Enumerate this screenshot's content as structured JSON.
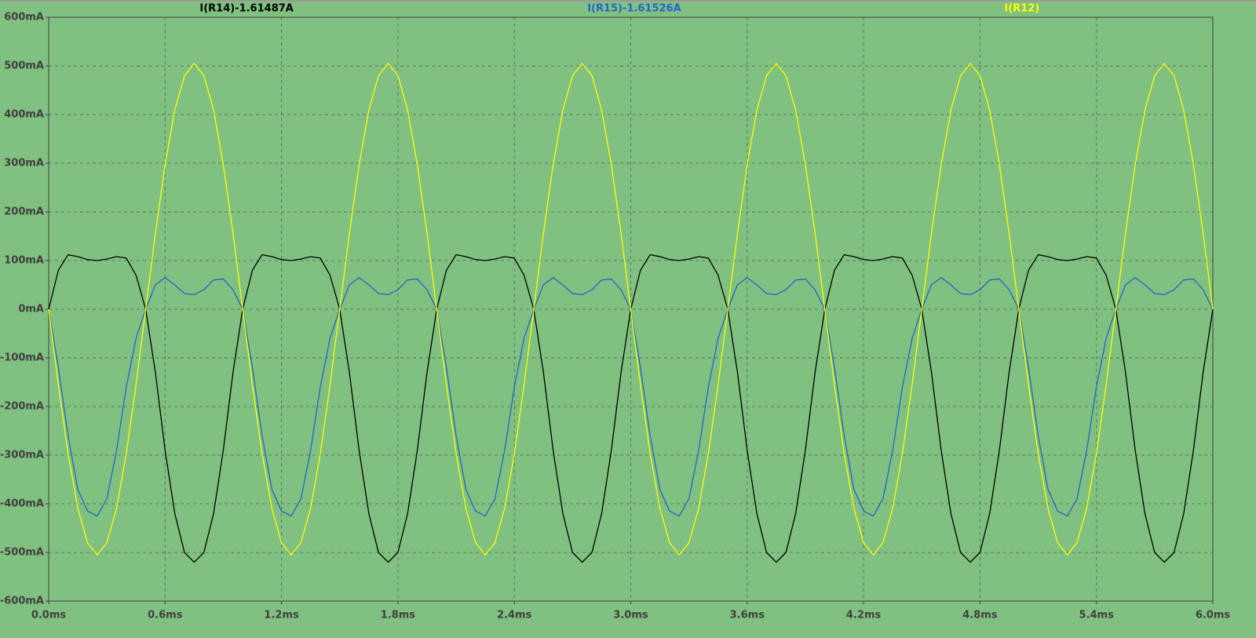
{
  "chart_data": {
    "type": "line",
    "x": [
      0,
      0.05,
      0.1,
      0.15,
      0.2,
      0.25,
      0.3,
      0.35,
      0.4,
      0.45,
      0.5,
      0.55,
      0.6,
      0.65,
      0.7,
      0.75,
      0.8,
      0.85,
      0.9,
      0.95,
      1,
      1.05,
      1.1,
      1.15,
      1.2,
      1.25,
      1.3,
      1.35,
      1.4,
      1.45,
      1.5,
      1.55,
      1.6,
      1.65,
      1.7,
      1.75,
      1.8,
      1.85,
      1.9,
      1.95,
      2,
      2.05,
      2.1,
      2.15,
      2.2,
      2.25,
      2.3,
      2.35,
      2.4,
      2.45,
      2.5,
      2.55,
      2.6,
      2.65,
      2.7,
      2.75,
      2.8,
      2.85,
      2.9,
      2.95,
      3,
      3.05,
      3.1,
      3.15,
      3.2,
      3.25,
      3.3,
      3.35,
      3.4,
      3.45,
      3.5,
      3.55,
      3.6,
      3.65,
      3.7,
      3.75,
      3.8,
      3.85,
      3.9,
      3.95,
      4,
      4.05,
      4.1,
      4.15,
      4.2,
      4.25,
      4.3,
      4.35,
      4.4,
      4.45,
      4.5,
      4.55,
      4.6,
      4.65,
      4.7,
      4.75,
      4.8,
      4.85,
      4.9,
      4.95,
      5,
      5.05,
      5.1,
      5.15,
      5.2,
      5.25,
      5.3,
      5.35,
      5.4,
      5.45,
      5.5,
      5.55,
      5.6,
      5.65,
      5.7,
      5.75,
      5.8,
      5.85,
      5.9,
      5.95,
      6
    ],
    "series": [
      {
        "name": "I(R14)-1.61487A",
        "color": "#000000",
        "values": [
          0,
          80,
          112,
          108,
          102,
          100,
          103,
          108,
          105,
          70,
          0,
          -130,
          -290,
          -420,
          -500,
          -520,
          -500,
          -420,
          -290,
          -130,
          0,
          80,
          112,
          108,
          102,
          100,
          103,
          108,
          105,
          70,
          0,
          -130,
          -290,
          -420,
          -500,
          -520,
          -500,
          -420,
          -290,
          -130,
          0,
          80,
          112,
          108,
          102,
          100,
          103,
          108,
          105,
          70,
          0,
          -130,
          -290,
          -420,
          -500,
          -520,
          -500,
          -420,
          -290,
          -130,
          0,
          80,
          112,
          108,
          102,
          100,
          103,
          108,
          105,
          70,
          0,
          -130,
          -290,
          -420,
          -500,
          -520,
          -500,
          -420,
          -290,
          -130,
          0,
          80,
          112,
          108,
          102,
          100,
          103,
          108,
          105,
          70,
          0,
          -130,
          -290,
          -420,
          -500,
          -520,
          -500,
          -420,
          -290,
          -130,
          0,
          80,
          112,
          108,
          102,
          100,
          103,
          108,
          105,
          70,
          0,
          -130,
          -290,
          -420,
          -500,
          -520,
          -500,
          -420,
          -290,
          -130,
          0
        ]
      },
      {
        "name": "I(R15)-1.61526A",
        "color": "#2266cc",
        "values": [
          0,
          -120,
          -260,
          -370,
          -415,
          -425,
          -390,
          -290,
          -160,
          -60,
          0,
          50,
          65,
          50,
          32,
          30,
          40,
          60,
          62,
          40,
          0,
          -120,
          -260,
          -370,
          -415,
          -425,
          -390,
          -290,
          -160,
          -60,
          0,
          50,
          65,
          50,
          32,
          30,
          40,
          60,
          62,
          40,
          0,
          -120,
          -260,
          -370,
          -415,
          -425,
          -390,
          -290,
          -160,
          -60,
          0,
          50,
          65,
          50,
          32,
          30,
          40,
          60,
          62,
          40,
          0,
          -120,
          -260,
          -370,
          -415,
          -425,
          -390,
          -290,
          -160,
          -60,
          0,
          50,
          65,
          50,
          32,
          30,
          40,
          60,
          62,
          40,
          0,
          -120,
          -260,
          -370,
          -415,
          -425,
          -390,
          -290,
          -160,
          -60,
          0,
          50,
          65,
          50,
          32,
          30,
          40,
          60,
          62,
          40,
          0,
          -120,
          -260,
          -370,
          -415,
          -425,
          -390,
          -290,
          -160,
          -60,
          0,
          50,
          65,
          50,
          32,
          30,
          40,
          60,
          62,
          40,
          0
        ]
      },
      {
        "name": "I(R12)",
        "color": "#ffff00",
        "values": [
          0,
          -156,
          -297,
          -409,
          -480,
          -505,
          -480,
          -409,
          -297,
          -156,
          0,
          156,
          297,
          409,
          480,
          505,
          480,
          409,
          297,
          156,
          0,
          -156,
          -297,
          -409,
          -480,
          -505,
          -480,
          -409,
          -297,
          -156,
          0,
          156,
          297,
          409,
          480,
          505,
          480,
          409,
          297,
          156,
          0,
          -156,
          -297,
          -409,
          -480,
          -505,
          -480,
          -409,
          -297,
          -156,
          0,
          156,
          297,
          409,
          480,
          505,
          480,
          409,
          297,
          156,
          0,
          -156,
          -297,
          -409,
          -480,
          -505,
          -480,
          -409,
          -297,
          -156,
          0,
          156,
          297,
          409,
          480,
          505,
          480,
          409,
          297,
          156,
          0,
          -156,
          -297,
          -409,
          -480,
          -505,
          -480,
          -409,
          -297,
          -156,
          0,
          156,
          297,
          409,
          480,
          505,
          480,
          409,
          297,
          156,
          0,
          -156,
          -297,
          -409,
          -480,
          -505,
          -480,
          -409,
          -297,
          -156,
          0,
          156,
          297,
          409,
          480,
          505,
          480,
          409,
          297,
          156,
          0
        ]
      }
    ],
    "xlim": [
      0,
      6
    ],
    "xticks": [
      {
        "value": 0,
        "label": "0.0ms"
      },
      {
        "value": 0.6,
        "label": "0.6ms"
      },
      {
        "value": 1.2,
        "label": "1.2ms"
      },
      {
        "value": 1.8,
        "label": "1.8ms"
      },
      {
        "value": 2.4,
        "label": "2.4ms"
      },
      {
        "value": 3,
        "label": "3.0ms"
      },
      {
        "value": 3.6,
        "label": "3.6ms"
      },
      {
        "value": 4.2,
        "label": "4.2ms"
      },
      {
        "value": 4.8,
        "label": "4.8ms"
      },
      {
        "value": 5.4,
        "label": "5.4ms"
      },
      {
        "value": 6,
        "label": "6.0ms"
      }
    ],
    "ylim": [
      -600,
      600
    ],
    "yticks": [
      {
        "value": -600,
        "label": "-600mA"
      },
      {
        "value": -500,
        "label": "-500mA"
      },
      {
        "value": -400,
        "label": "-400mA"
      },
      {
        "value": -300,
        "label": "-300mA"
      },
      {
        "value": -200,
        "label": "-200mA"
      },
      {
        "value": -100,
        "label": "-100mA"
      },
      {
        "value": 0,
        "label": "0mA"
      },
      {
        "value": 100,
        "label": "100mA"
      },
      {
        "value": 200,
        "label": "200mA"
      },
      {
        "value": 300,
        "label": "300mA"
      },
      {
        "value": 400,
        "label": "400mA"
      },
      {
        "value": 500,
        "label": "500mA"
      },
      {
        "value": 600,
        "label": "600mA"
      }
    ],
    "grid": true
  }
}
